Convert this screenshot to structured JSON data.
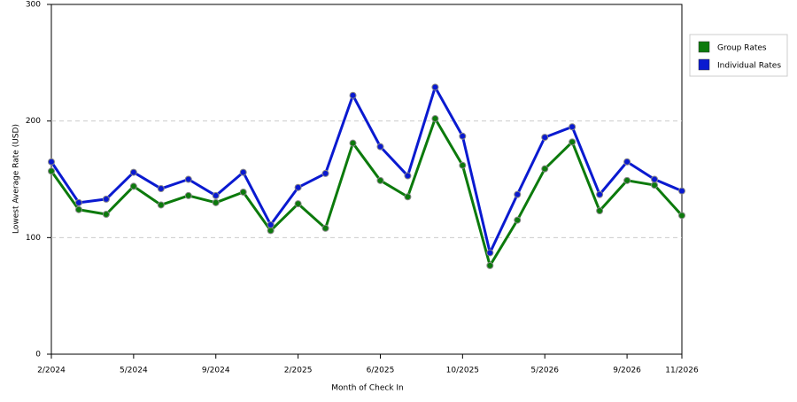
{
  "chart_data": {
    "type": "line",
    "x_label": "Month of Check In",
    "y_label": "Lowest Average Rate (USD)",
    "categories": [
      "2/2024",
      null,
      null,
      "5/2024",
      null,
      null,
      "9/2024",
      null,
      null,
      "2/2025",
      null,
      null,
      "6/2025",
      null,
      null,
      "10/2025",
      null,
      null,
      "5/2026",
      null,
      null,
      "9/2026",
      null,
      "11/2026"
    ],
    "series": [
      {
        "name": "Group Rates",
        "color": "#0c7a0c",
        "values": [
          157,
          124,
          120,
          144,
          128,
          136,
          130,
          139,
          106,
          129,
          108,
          181,
          149,
          135,
          202,
          162,
          76,
          115,
          159,
          182,
          123,
          149,
          145,
          119
        ]
      },
      {
        "name": "Individual Rates",
        "color": "#0a1ad0",
        "values": [
          165,
          130,
          133,
          156,
          142,
          150,
          136,
          156,
          111,
          143,
          155,
          222,
          178,
          153,
          229,
          187,
          87,
          137,
          186,
          195,
          137,
          165,
          150,
          140
        ]
      }
    ],
    "ylim": [
      0,
      300
    ],
    "yticks": [
      0,
      100,
      200,
      300
    ],
    "grid": true,
    "legend": "right"
  }
}
